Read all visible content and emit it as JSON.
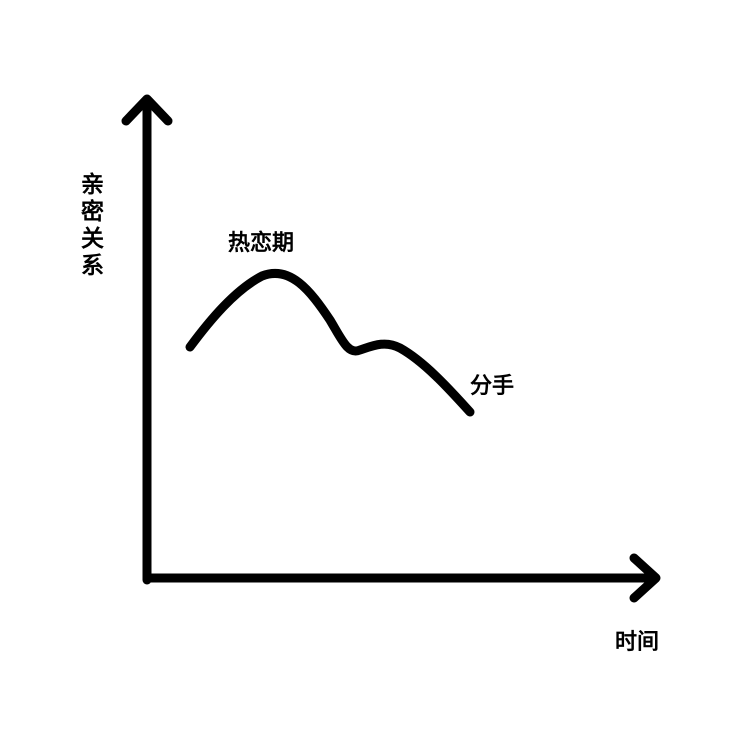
{
  "axes": {
    "y_label": "亲密关系",
    "x_label": "时间"
  },
  "annotations": {
    "peak": "热恋期",
    "end": "分手"
  },
  "colors": {
    "stroke": "#000000",
    "background": "#ffffff"
  }
}
